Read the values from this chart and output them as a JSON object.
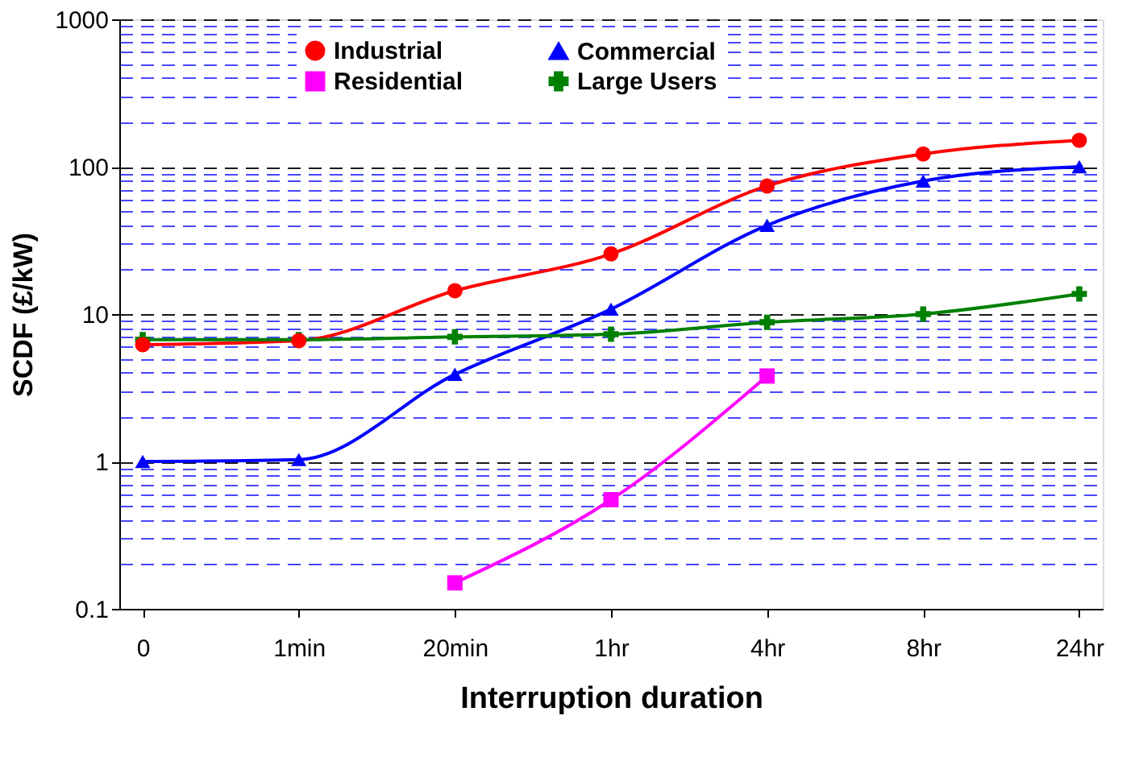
{
  "chart_data": {
    "type": "line",
    "xlabel": "Interruption duration",
    "ylabel": "SCDF (£/kW)",
    "categories": [
      "0",
      "1min",
      "20min",
      "1hr",
      "4hr",
      "8hr",
      "24hr"
    ],
    "series": [
      {
        "name": "Industrial",
        "color": "#ff0000",
        "marker": "circle",
        "values": [
          6.2,
          6.6,
          14.4,
          25.6,
          74,
          122,
          151
        ]
      },
      {
        "name": "Residential",
        "color": "#ff00ff",
        "marker": "square",
        "values": [
          null,
          null,
          0.15,
          0.55,
          3.8,
          null,
          null
        ]
      },
      {
        "name": "Commercial",
        "color": "#0000ff",
        "marker": "triangle",
        "values": [
          1.0,
          1.03,
          3.9,
          10.8,
          40,
          80,
          100
        ]
      },
      {
        "name": "Large Users",
        "color": "#008000",
        "marker": "cross",
        "values": [
          6.7,
          6.7,
          7.0,
          7.3,
          8.8,
          10,
          13.7
        ]
      }
    ],
    "log": true,
    "ylim": [
      0.1,
      1000
    ],
    "yticks": [
      0.1,
      {
        "value": 0.2,
        "label": null
      },
      {
        "value": 0.3,
        "label": null
      },
      {
        "value": 0.4,
        "label": null
      },
      {
        "value": 0.5,
        "label": null
      },
      {
        "value": 0.6,
        "label": null
      },
      {
        "value": 0.7,
        "label": null
      },
      {
        "value": 0.8,
        "label": null
      },
      {
        "value": 0.9,
        "label": null
      },
      1,
      {
        "value": 2,
        "label": null
      },
      {
        "value": 3,
        "label": null
      },
      {
        "value": 4,
        "label": null
      },
      {
        "value": 5,
        "label": null
      },
      {
        "value": 6,
        "label": null
      },
      {
        "value": 7,
        "label": null
      },
      {
        "value": 8,
        "label": null
      },
      {
        "value": 9,
        "label": null
      },
      10,
      {
        "value": 20,
        "label": null
      },
      {
        "value": 30,
        "label": null
      },
      {
        "value": 40,
        "label": null
      },
      {
        "value": 50,
        "label": null
      },
      {
        "value": 60,
        "label": null
      },
      {
        "value": 70,
        "label": null
      },
      {
        "value": 80,
        "label": null
      },
      {
        "value": 90,
        "label": null
      },
      100,
      {
        "value": 200,
        "label": null
      },
      {
        "value": 300,
        "label": null
      },
      {
        "value": 400,
        "label": null
      },
      {
        "value": 500,
        "label": null
      },
      {
        "value": 600,
        "label": null
      },
      {
        "value": 700,
        "label": null
      },
      {
        "value": 800,
        "label": null
      },
      {
        "value": 900,
        "label": null
      },
      1000
    ],
    "grid": "y",
    "line_style": "solid",
    "legend": "top"
  }
}
